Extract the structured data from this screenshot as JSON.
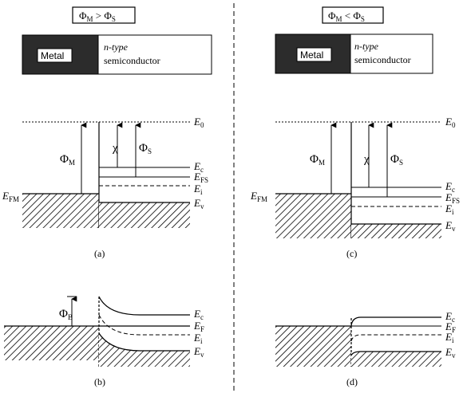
{
  "left_column": {
    "condition": {
      "main": "Φ",
      "sub1": "M",
      "op": " > ",
      "main2": "Φ",
      "sub2": "S"
    },
    "metal_label": "Metal",
    "semi_line1": "n-type",
    "semi_line2": "semiconductor",
    "caption_a": "(a)",
    "caption_b": "(b)"
  },
  "right_column": {
    "condition": {
      "main": "Φ",
      "sub1": "M",
      "op": " < ",
      "main2": "Φ",
      "sub2": "S"
    },
    "metal_label": "Metal",
    "semi_line1": "n-type",
    "semi_line2": "semiconductor",
    "caption_c": "(c)",
    "caption_d": "(d)"
  },
  "levels": {
    "E0": {
      "main": "E",
      "sub": "0"
    },
    "Ec": {
      "main": "E",
      "sub": "c"
    },
    "EFS": {
      "main": "E",
      "sub": "FS"
    },
    "EF": {
      "main": "E",
      "sub": "F"
    },
    "Ei": {
      "main": "E",
      "sub": "i"
    },
    "Ev": {
      "main": "E",
      "sub": "v"
    },
    "EFM": {
      "main": "E",
      "sub": "FM"
    }
  },
  "symbols": {
    "phiM": {
      "main": "Φ",
      "sub": "M"
    },
    "phiS": {
      "main": "Φ",
      "sub": "S"
    },
    "phiB": {
      "main": "Φ",
      "sub": "B"
    },
    "chi": "χ"
  }
}
